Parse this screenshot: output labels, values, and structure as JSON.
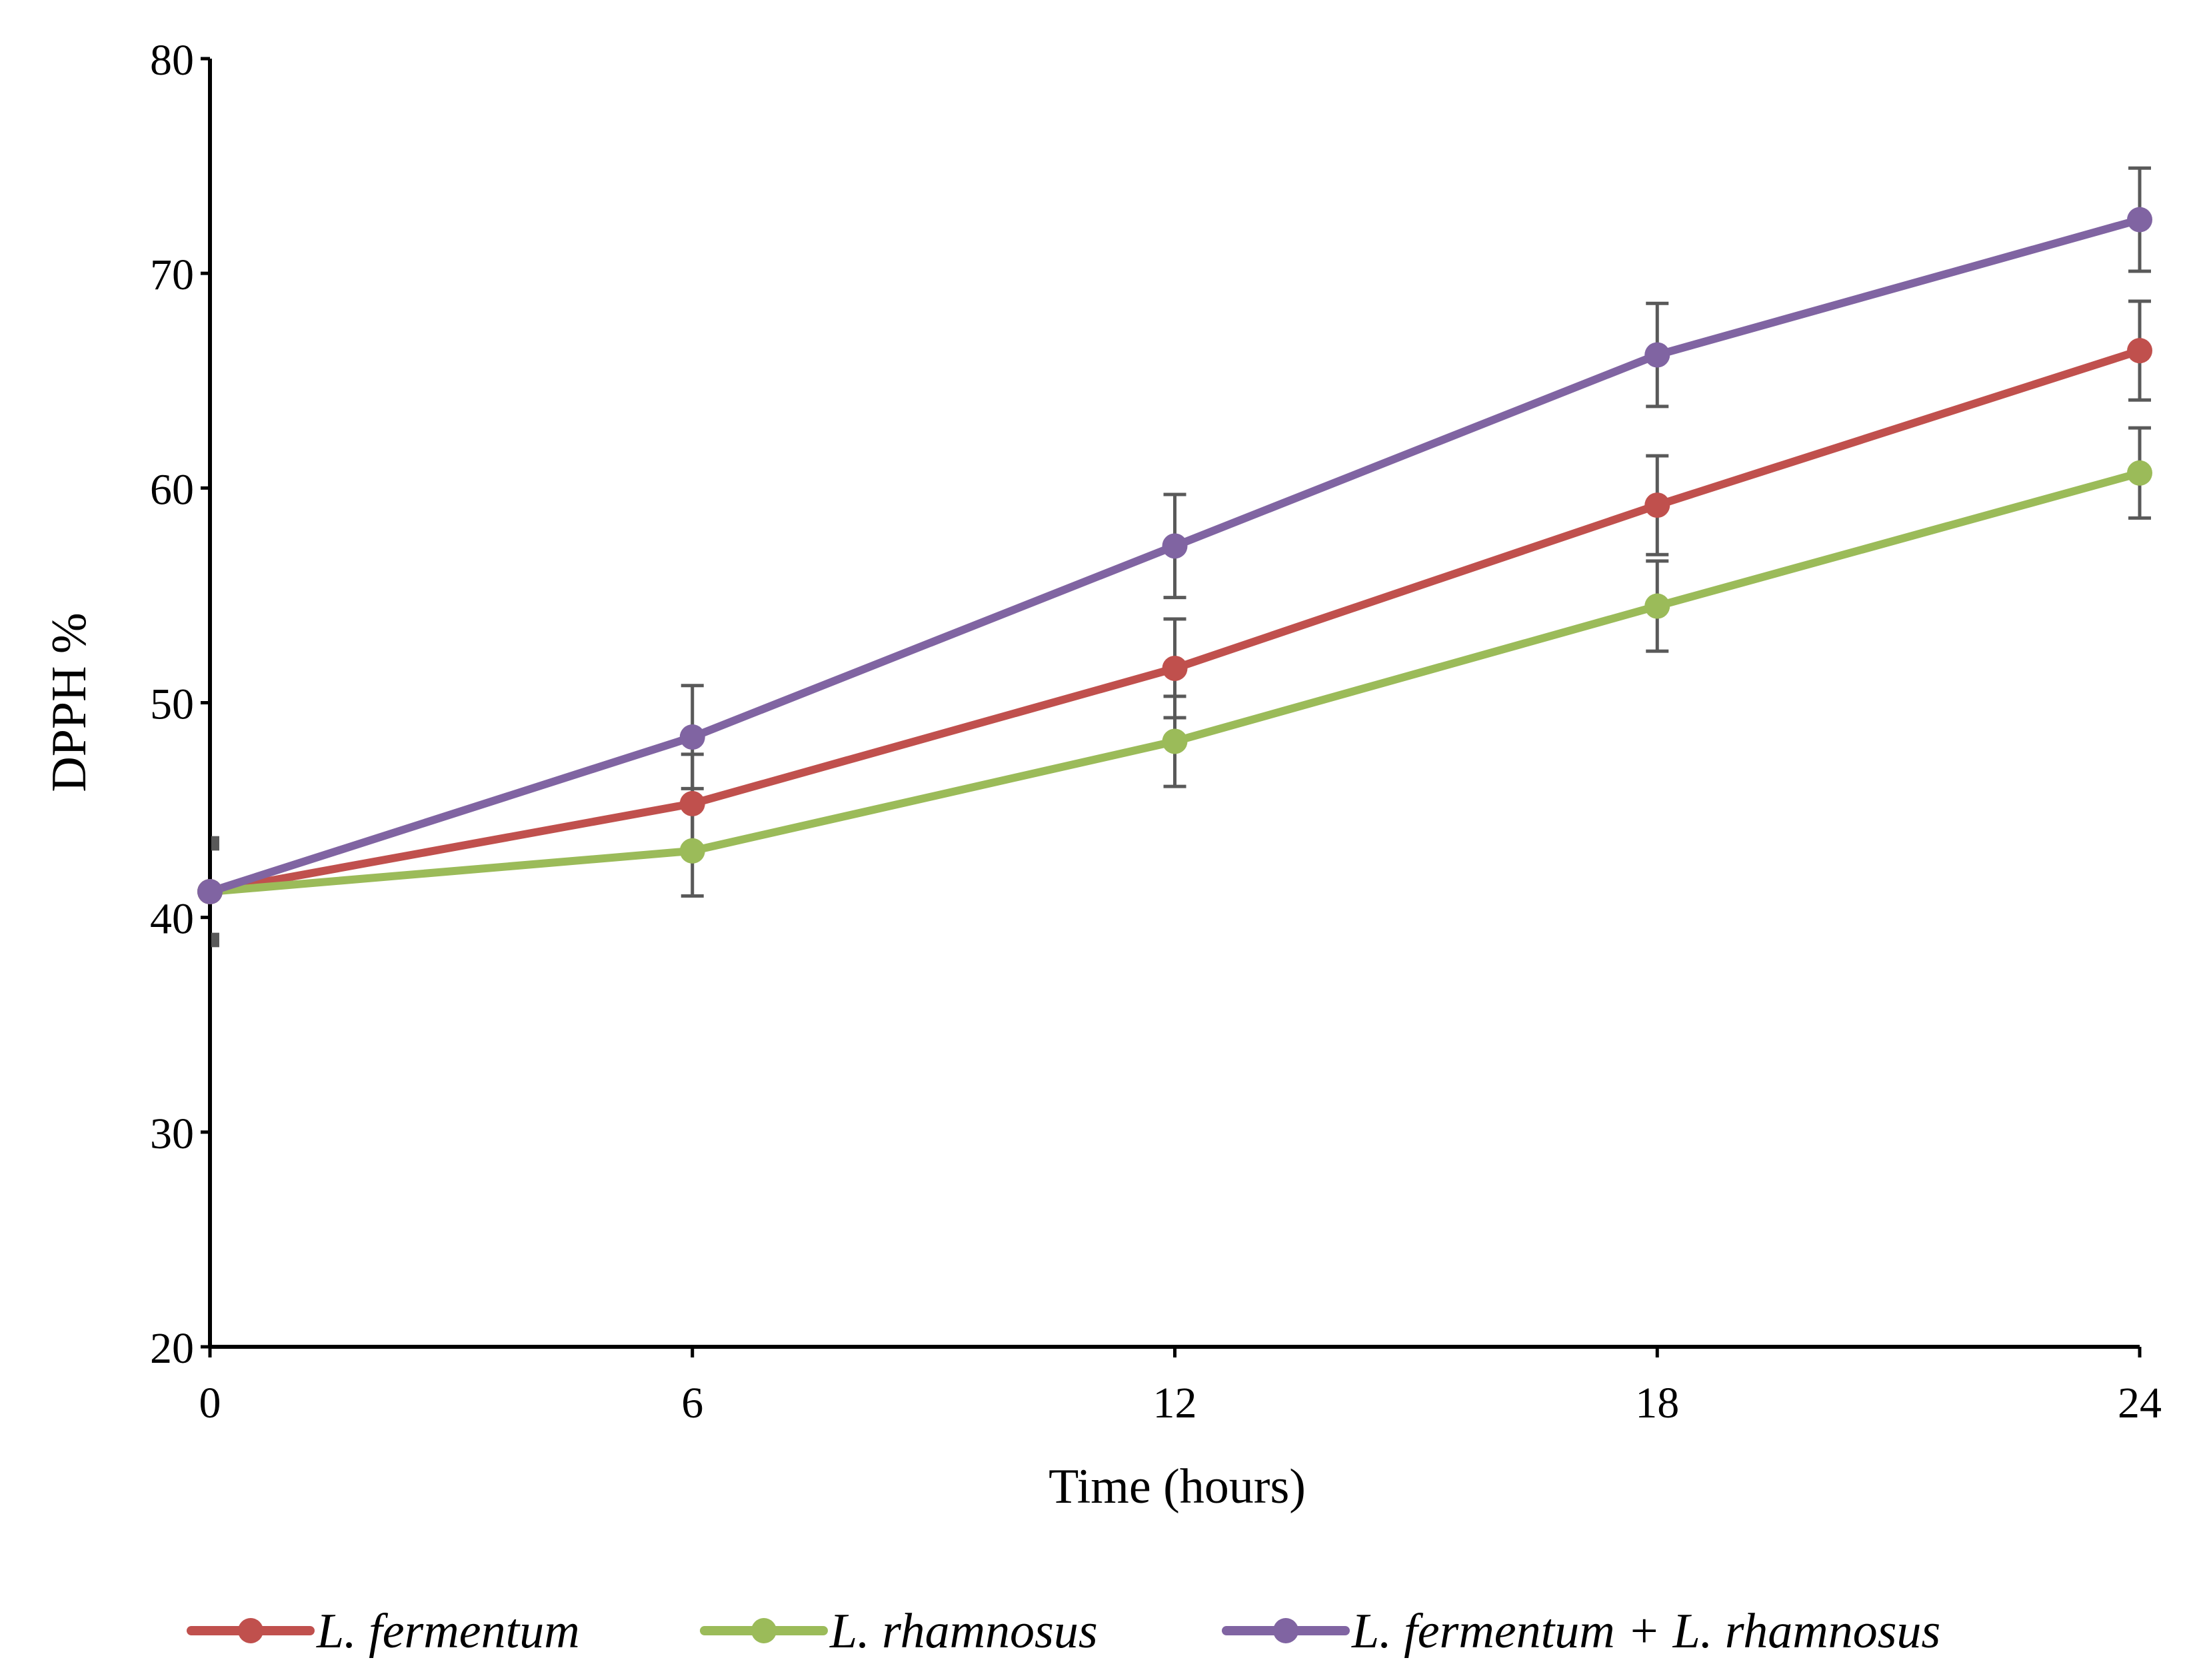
{
  "chart_data": {
    "type": "line",
    "title": "",
    "xlabel": "Time (hours)",
    "ylabel": "DPPH %",
    "x": [
      0,
      6,
      12,
      18,
      24
    ],
    "x_tick_labels": [
      "0",
      "6",
      "12",
      "18",
      "24"
    ],
    "xlim": [
      0,
      24
    ],
    "ylim": [
      20,
      80
    ],
    "y_ticks": [
      20,
      30,
      40,
      50,
      60,
      70,
      80
    ],
    "y_tick_labels": [
      "20",
      "30",
      "40",
      "50",
      "60",
      "70",
      "80"
    ],
    "grid": false,
    "legend_position": "bottom",
    "series": [
      {
        "name": "L. fermentum",
        "color": "#C0504D",
        "values": [
          41.2,
          45.3,
          51.6,
          59.2,
          66.4
        ],
        "errors": [
          2.3,
          2.3,
          2.3,
          2.3,
          2.3
        ]
      },
      {
        "name": "L. rhamnosus",
        "color": "#9BBB59",
        "values": [
          41.2,
          43.1,
          48.2,
          54.5,
          60.7
        ],
        "errors": [
          2.1,
          2.1,
          2.1,
          2.1,
          2.1
        ]
      },
      {
        "name": "L. fermentum + L. rhamnosus",
        "color": "#8064A2",
        "values": [
          41.2,
          48.4,
          57.3,
          66.2,
          72.5
        ],
        "errors": [
          2.4,
          2.4,
          2.4,
          2.4,
          2.4
        ]
      }
    ],
    "error_bar_color": "#595959",
    "axis_color": "#000000"
  }
}
